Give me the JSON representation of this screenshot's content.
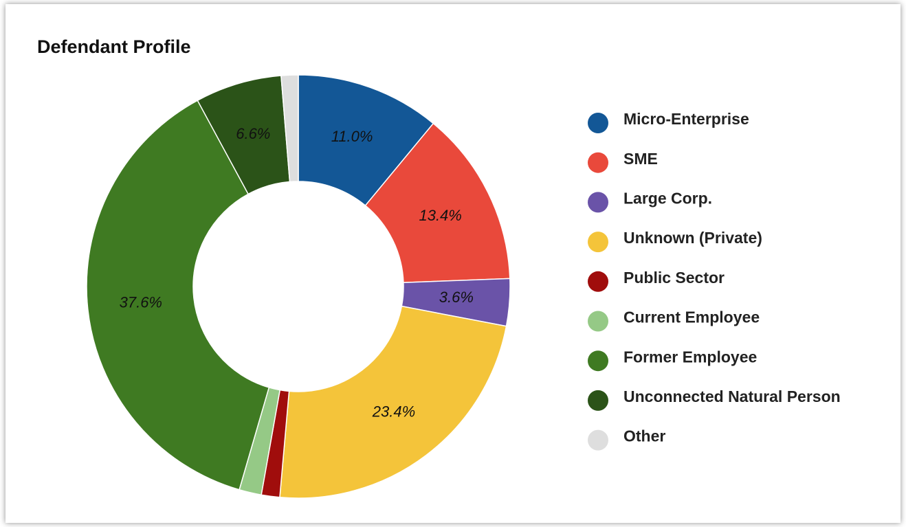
{
  "chart_data": {
    "type": "donut",
    "title": "Defendant Profile",
    "categories": [
      "Micro-Enterprise",
      "SME",
      "Large Corp.",
      "Unknown (Private)",
      "Public Sector",
      "Current Employee",
      "Former Employee",
      "Unconnected Natural Person",
      "Other"
    ],
    "values": [
      11.0,
      13.4,
      3.6,
      23.4,
      1.4,
      1.7,
      37.6,
      6.6,
      1.3
    ],
    "value_labels": [
      "11.0%",
      "13.4%",
      "3.6%",
      "23.4%",
      null,
      null,
      "37.6%",
      "6.6%",
      null
    ],
    "colors": [
      "#135796",
      "#e9493b",
      "#6a53a8",
      "#f4c43a",
      "#a00d0c",
      "#95c986",
      "#3f7a22",
      "#2b5318",
      "#dedede"
    ],
    "legend": "right"
  }
}
